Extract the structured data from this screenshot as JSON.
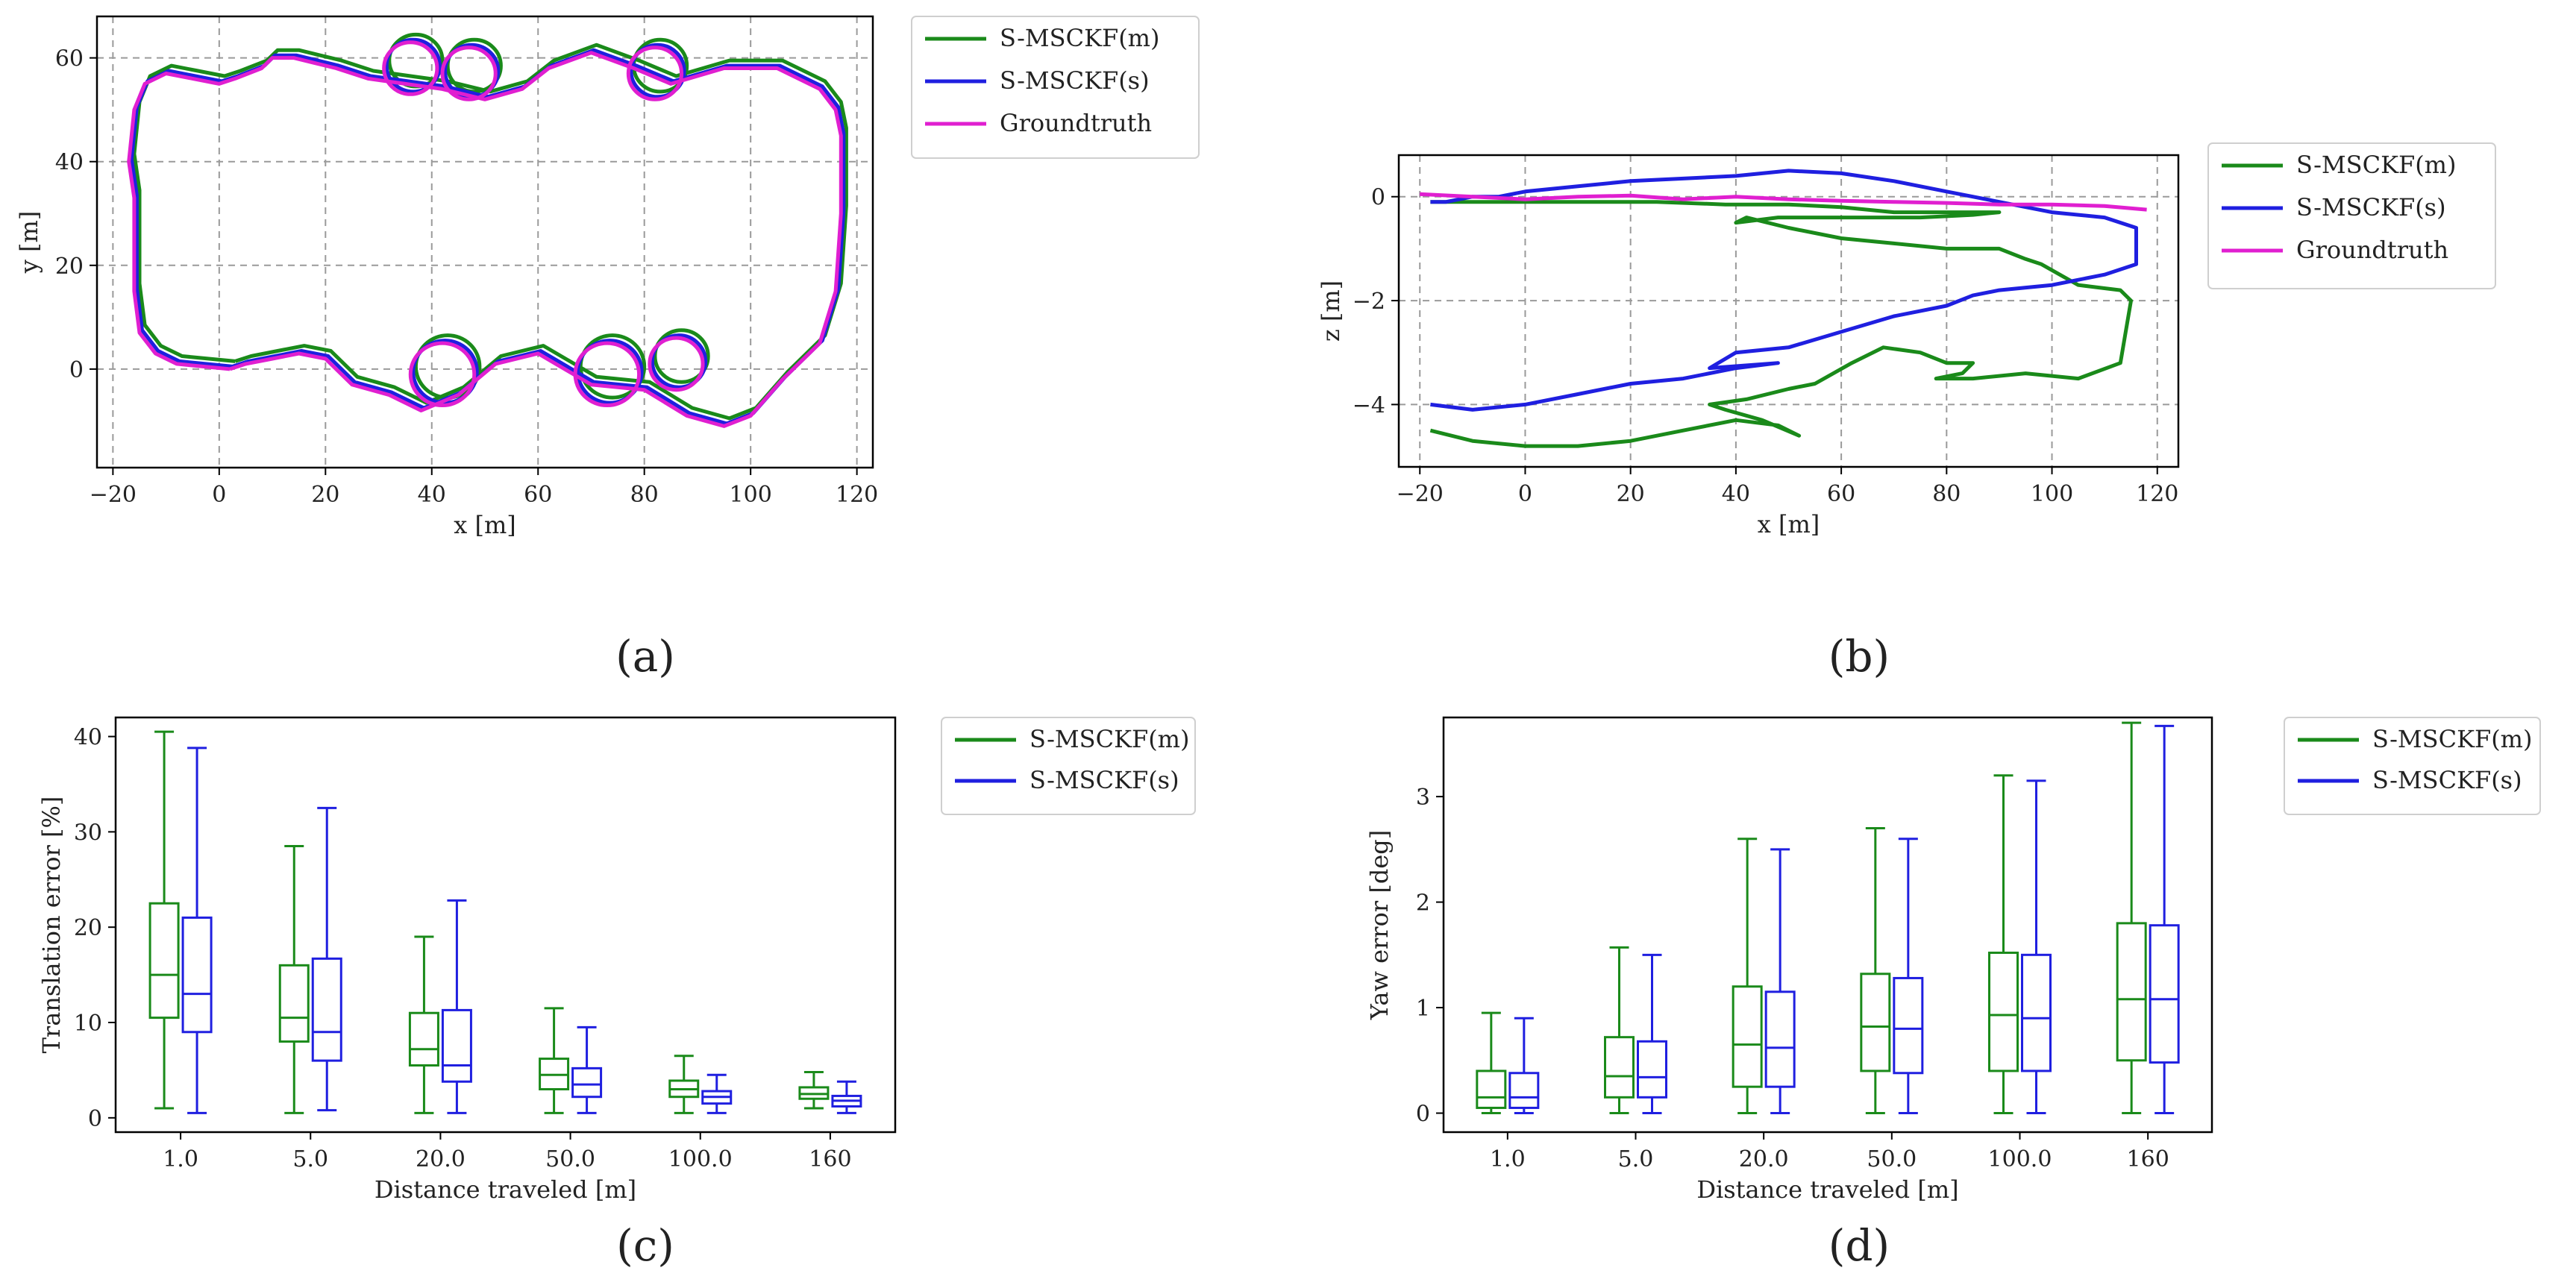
{
  "colors": {
    "green": "#1a8a1a",
    "blue": "#1f1fe0",
    "magenta": "#e01fd0",
    "grid": "#9a9a9a"
  },
  "chart_data": [
    {
      "id": "a",
      "type": "line",
      "caption": "(a)",
      "xlabel": "x [m]",
      "ylabel": "y [m]",
      "xlim": [
        -23,
        123
      ],
      "ylim": [
        -19,
        68
      ],
      "xticks": [
        -20,
        0,
        20,
        40,
        60,
        80,
        100,
        120
      ],
      "yticks": [
        0,
        20,
        40,
        60
      ],
      "legend": [
        "S-MSCKF(m)",
        "S-MSCKF(s)",
        "Groundtruth"
      ],
      "series": [
        {
          "name": "S-MSCKF(m)",
          "color": "green",
          "offset": [
            1.0,
            1.5
          ],
          "x": [
            2,
            -8,
            -12,
            -15,
            -16,
            -16,
            -16,
            -17,
            -16,
            -14,
            -10,
            -5,
            0,
            3,
            8,
            10,
            14,
            18,
            22,
            28,
            35,
            42,
            50,
            57,
            62,
            70,
            78,
            85,
            95,
            105,
            113,
            116,
            117,
            117,
            116,
            113,
            106,
            100,
            95,
            88,
            80,
            70,
            60,
            52,
            45,
            38,
            32,
            25,
            20,
            15,
            10,
            5,
            2
          ],
          "y": [
            0,
            1,
            3,
            7,
            15,
            25,
            33,
            40,
            50,
            55,
            57,
            56,
            55,
            56,
            58,
            60,
            60,
            59,
            58,
            56,
            55,
            54,
            52,
            54,
            58,
            61,
            58,
            55,
            58,
            58,
            54,
            50,
            45,
            30,
            15,
            5,
            -2,
            -9,
            -11,
            -9,
            -4,
            -3,
            3,
            1,
            -5,
            -8,
            -5,
            -3,
            2,
            3,
            2,
            1,
            0
          ]
        },
        {
          "name": "S-MSCKF(s)",
          "color": "blue",
          "offset": [
            0.5,
            0.5
          ],
          "x": [
            2,
            -8,
            -12,
            -15,
            -16,
            -16,
            -16,
            -17,
            -16,
            -14,
            -10,
            -5,
            0,
            3,
            8,
            10,
            14,
            18,
            22,
            28,
            35,
            42,
            50,
            57,
            62,
            70,
            78,
            85,
            95,
            105,
            113,
            116,
            117,
            117,
            116,
            113,
            106,
            100,
            95,
            88,
            80,
            70,
            60,
            52,
            45,
            38,
            32,
            25,
            20,
            15,
            10,
            5,
            2
          ],
          "y": [
            0,
            1,
            3,
            7,
            15,
            25,
            33,
            40,
            50,
            55,
            57,
            56,
            55,
            56,
            58,
            60,
            60,
            59,
            58,
            56,
            55,
            54,
            52,
            54,
            58,
            61,
            58,
            55,
            58,
            58,
            54,
            50,
            45,
            30,
            15,
            5,
            -2,
            -9,
            -11,
            -9,
            -4,
            -3,
            3,
            1,
            -5,
            -8,
            -5,
            -3,
            2,
            3,
            2,
            1,
            0
          ]
        },
        {
          "name": "Groundtruth",
          "color": "magenta",
          "offset": [
            0,
            0
          ],
          "x": [
            2,
            -8,
            -12,
            -15,
            -16,
            -16,
            -16,
            -17,
            -16,
            -14,
            -10,
            -5,
            0,
            3,
            8,
            10,
            14,
            18,
            22,
            28,
            35,
            42,
            50,
            57,
            62,
            70,
            78,
            85,
            95,
            105,
            113,
            116,
            117,
            117,
            116,
            113,
            106,
            100,
            95,
            88,
            80,
            70,
            60,
            52,
            45,
            38,
            32,
            25,
            20,
            15,
            10,
            5,
            2
          ],
          "y": [
            0,
            1,
            3,
            7,
            15,
            25,
            33,
            40,
            50,
            55,
            57,
            56,
            55,
            56,
            58,
            60,
            60,
            59,
            58,
            56,
            55,
            54,
            52,
            54,
            58,
            61,
            58,
            55,
            58,
            58,
            54,
            50,
            45,
            30,
            15,
            5,
            -2,
            -9,
            -11,
            -9,
            -4,
            -3,
            3,
            1,
            -5,
            -8,
            -5,
            -3,
            2,
            3,
            2,
            1,
            0
          ]
        }
      ],
      "loops": [
        {
          "cx": 36,
          "cy": 58,
          "r": 5
        },
        {
          "cx": 47,
          "cy": 57,
          "r": 5
        },
        {
          "cx": 82,
          "cy": 57,
          "r": 5
        },
        {
          "cx": 42,
          "cy": -1,
          "r": 6
        },
        {
          "cx": 73,
          "cy": -1,
          "r": 6
        },
        {
          "cx": 86,
          "cy": 1,
          "r": 5
        }
      ]
    },
    {
      "id": "b",
      "type": "line",
      "caption": "(b)",
      "xlabel": "x [m]",
      "ylabel": "z [m]",
      "xlim": [
        -24,
        124
      ],
      "ylim": [
        -5.2,
        0.8
      ],
      "xticks": [
        -20,
        0,
        20,
        40,
        60,
        80,
        100,
        120
      ],
      "yticks": [
        -4,
        -2,
        0
      ],
      "legend": [
        "S-MSCKF(m)",
        "S-MSCKF(s)",
        "Groundtruth"
      ],
      "series": [
        {
          "name": "S-MSCKF(m)",
          "color": "green",
          "x": [
            -18,
            -10,
            0,
            10,
            20,
            30,
            40,
            48,
            52,
            45,
            38,
            35,
            42,
            50,
            55,
            62,
            68,
            75,
            80,
            85,
            83,
            78,
            85,
            95,
            105,
            113,
            115,
            113,
            105,
            98,
            95,
            90,
            80,
            70,
            60,
            50,
            42,
            40,
            48,
            60,
            75,
            85,
            90,
            80,
            70,
            60,
            50,
            38,
            25,
            10,
            0,
            -10,
            -18
          ],
          "y": [
            -4.5,
            -4.7,
            -4.8,
            -4.8,
            -4.7,
            -4.5,
            -4.3,
            -4.4,
            -4.6,
            -4.3,
            -4.1,
            -4.0,
            -3.9,
            -3.7,
            -3.6,
            -3.2,
            -2.9,
            -3.0,
            -3.2,
            -3.2,
            -3.4,
            -3.5,
            -3.5,
            -3.4,
            -3.5,
            -3.2,
            -2.0,
            -1.8,
            -1.7,
            -1.3,
            -1.2,
            -1.0,
            -1.0,
            -0.9,
            -0.8,
            -0.6,
            -0.4,
            -0.5,
            -0.4,
            -0.4,
            -0.4,
            -0.35,
            -0.3,
            -0.3,
            -0.3,
            -0.2,
            -0.15,
            -0.15,
            -0.1,
            -0.1,
            -0.1,
            -0.1,
            -0.1
          ]
        },
        {
          "name": "S-MSCKF(s)",
          "color": "blue",
          "x": [
            -18,
            -10,
            0,
            10,
            20,
            30,
            40,
            48,
            35,
            40,
            50,
            60,
            70,
            80,
            85,
            90,
            100,
            110,
            116,
            116,
            110,
            100,
            90,
            80,
            70,
            60,
            50,
            40,
            30,
            20,
            10,
            0,
            -5,
            -10,
            -15,
            -18
          ],
          "y": [
            -4.0,
            -4.1,
            -4.0,
            -3.8,
            -3.6,
            -3.5,
            -3.3,
            -3.2,
            -3.3,
            -3.0,
            -2.9,
            -2.6,
            -2.3,
            -2.1,
            -1.9,
            -1.8,
            -1.7,
            -1.5,
            -1.3,
            -0.6,
            -0.4,
            -0.3,
            -0.1,
            0.1,
            0.3,
            0.45,
            0.5,
            0.4,
            0.35,
            0.3,
            0.2,
            0.1,
            0.0,
            0.0,
            -0.1,
            -0.1
          ]
        },
        {
          "name": "Groundtruth",
          "color": "magenta",
          "x": [
            -20,
            -10,
            0,
            10,
            20,
            30,
            40,
            50,
            60,
            70,
            80,
            90,
            100,
            110,
            118
          ],
          "y": [
            0.05,
            0.0,
            -0.05,
            0.0,
            0.02,
            -0.05,
            0.0,
            -0.05,
            -0.08,
            -0.1,
            -0.12,
            -0.15,
            -0.15,
            -0.18,
            -0.25
          ]
        }
      ]
    },
    {
      "id": "c",
      "type": "box",
      "caption": "(c)",
      "xlabel": "Distance traveled [m]",
      "ylabel": "Translation error [%]",
      "categories": [
        "1.0",
        "5.0",
        "20.0",
        "50.0",
        "100.0",
        "160"
      ],
      "ylim": [
        -1.5,
        42
      ],
      "yticks": [
        0,
        10,
        20,
        30,
        40
      ],
      "legend": [
        "S-MSCKF(m)",
        "S-MSCKF(s)"
      ],
      "series": [
        {
          "name": "S-MSCKF(m)",
          "color": "green",
          "boxes": [
            {
              "min": 1.0,
              "q1": 10.5,
              "median": 15.0,
              "q3": 22.5,
              "max": 40.5
            },
            {
              "min": 0.5,
              "q1": 8.0,
              "median": 10.5,
              "q3": 16.0,
              "max": 28.5
            },
            {
              "min": 0.5,
              "q1": 5.5,
              "median": 7.2,
              "q3": 11.0,
              "max": 19.0
            },
            {
              "min": 0.5,
              "q1": 3.0,
              "median": 4.5,
              "q3": 6.2,
              "max": 11.5
            },
            {
              "min": 0.5,
              "q1": 2.2,
              "median": 3.0,
              "q3": 3.9,
              "max": 6.5
            },
            {
              "min": 1.0,
              "q1": 2.0,
              "median": 2.5,
              "q3": 3.2,
              "max": 4.8
            }
          ]
        },
        {
          "name": "S-MSCKF(s)",
          "color": "blue",
          "boxes": [
            {
              "min": 0.5,
              "q1": 9.0,
              "median": 13.0,
              "q3": 21.0,
              "max": 38.8
            },
            {
              "min": 0.8,
              "q1": 6.0,
              "median": 9.0,
              "q3": 16.7,
              "max": 32.5
            },
            {
              "min": 0.5,
              "q1": 3.8,
              "median": 5.5,
              "q3": 11.3,
              "max": 22.8
            },
            {
              "min": 0.5,
              "q1": 2.2,
              "median": 3.5,
              "q3": 5.2,
              "max": 9.5
            },
            {
              "min": 0.5,
              "q1": 1.5,
              "median": 2.2,
              "q3": 2.8,
              "max": 4.5
            },
            {
              "min": 0.5,
              "q1": 1.2,
              "median": 1.8,
              "q3": 2.3,
              "max": 3.8
            }
          ]
        }
      ]
    },
    {
      "id": "d",
      "type": "box",
      "caption": "(d)",
      "xlabel": "Distance traveled [m]",
      "ylabel": "Yaw error [deg]",
      "categories": [
        "1.0",
        "5.0",
        "20.0",
        "50.0",
        "100.0",
        "160"
      ],
      "ylim": [
        -0.18,
        3.75
      ],
      "yticks": [
        0,
        1,
        2,
        3
      ],
      "legend": [
        "S-MSCKF(m)",
        "S-MSCKF(s)"
      ],
      "series": [
        {
          "name": "S-MSCKF(m)",
          "color": "green",
          "boxes": [
            {
              "min": 0.0,
              "q1": 0.05,
              "median": 0.15,
              "q3": 0.4,
              "max": 0.95
            },
            {
              "min": 0.0,
              "q1": 0.15,
              "median": 0.35,
              "q3": 0.72,
              "max": 1.57
            },
            {
              "min": 0.0,
              "q1": 0.25,
              "median": 0.65,
              "q3": 1.2,
              "max": 2.6
            },
            {
              "min": 0.0,
              "q1": 0.4,
              "median": 0.82,
              "q3": 1.32,
              "max": 2.7
            },
            {
              "min": 0.0,
              "q1": 0.4,
              "median": 0.93,
              "q3": 1.52,
              "max": 3.2
            },
            {
              "min": 0.0,
              "q1": 0.5,
              "median": 1.08,
              "q3": 1.8,
              "max": 3.7
            }
          ]
        },
        {
          "name": "S-MSCKF(s)",
          "color": "blue",
          "boxes": [
            {
              "min": 0.0,
              "q1": 0.05,
              "median": 0.15,
              "q3": 0.38,
              "max": 0.9
            },
            {
              "min": 0.0,
              "q1": 0.15,
              "median": 0.34,
              "q3": 0.68,
              "max": 1.5
            },
            {
              "min": 0.0,
              "q1": 0.25,
              "median": 0.62,
              "q3": 1.15,
              "max": 2.5
            },
            {
              "min": 0.0,
              "q1": 0.38,
              "median": 0.8,
              "q3": 1.28,
              "max": 2.6
            },
            {
              "min": 0.0,
              "q1": 0.4,
              "median": 0.9,
              "q3": 1.5,
              "max": 3.15
            },
            {
              "min": 0.0,
              "q1": 0.48,
              "median": 1.08,
              "q3": 1.78,
              "max": 3.67
            }
          ]
        }
      ]
    }
  ]
}
